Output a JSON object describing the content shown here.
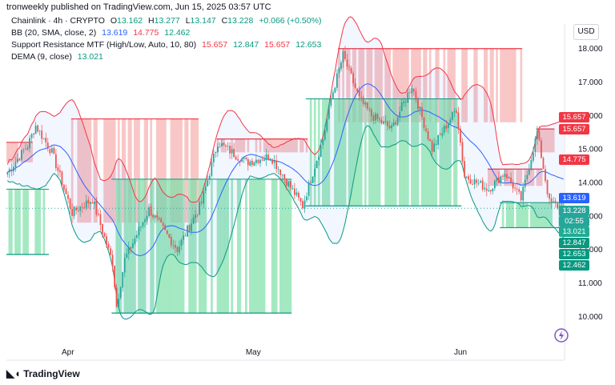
{
  "header": {
    "publisher": "tronweekly published on TradingView.com, Jun 15, 2025 03:57 UTC"
  },
  "legend": {
    "symbol_line": "Chainlink · 4h · CRYPTO",
    "open_label": "O",
    "open": "13.162",
    "high_label": "H",
    "high": "13.277",
    "low_label": "L",
    "low": "13.147",
    "close_label": "C",
    "close": "13.228",
    "change": "+0.066 (+0.50%)",
    "bb_label": "BB (20, SMA, close, 2)",
    "bb_basis": "13.619",
    "bb_upper": "14.775",
    "bb_lower": "12.462",
    "sr_label": "Support Resistance MTF (High/Low, Auto, 10, 80)",
    "sr_v1": "15.657",
    "sr_v2": "12.847",
    "sr_v3": "15.657",
    "sr_v4": "12.653",
    "dema_label": "DEMA (9, close)",
    "dema": "13.021"
  },
  "currency_button": "USD",
  "price_tags": {
    "r1": "15.657",
    "r2": "15.657",
    "bb_upper": "14.775",
    "bb_basis": "13.619",
    "close": "13.228",
    "countdown": "02:55",
    "dema": "13.021",
    "s1": "12.847",
    "s2": "12.653",
    "bb_lower": "12.462"
  },
  "footer": {
    "brand": "TradingView"
  },
  "colors": {
    "up": "#26a69a",
    "down": "#ef5350",
    "basis": "#2962ff",
    "bb_upper": "#f23645",
    "bb_lower": "#089981",
    "res_fill": "#f7b4b4",
    "sup_fill": "#7fe0a8"
  },
  "chart_data": {
    "type": "candlestick",
    "symbol": "Chainlink",
    "interval": "4h",
    "ylim": [
      9.6,
      18.4
    ],
    "y_ticks": [
      "18.000",
      "17.000",
      "16.000",
      "15.000",
      "14.000",
      "13.000",
      "12.000",
      "11.000",
      "10.000"
    ],
    "x_ticks": [
      "Apr",
      "May",
      "Jun"
    ],
    "x_tick_index": [
      30,
      121,
      224
    ],
    "n_candles": 276,
    "path_anchors": [
      [
        0,
        14.3
      ],
      [
        10,
        15.1
      ],
      [
        14,
        15.7
      ],
      [
        22,
        14.9
      ],
      [
        32,
        13.1
      ],
      [
        42,
        13.5
      ],
      [
        52,
        11.6
      ],
      [
        54,
        10.3
      ],
      [
        58,
        11.7
      ],
      [
        70,
        13.2
      ],
      [
        84,
        12.0
      ],
      [
        96,
        13.4
      ],
      [
        104,
        15.2
      ],
      [
        118,
        14.6
      ],
      [
        130,
        14.8
      ],
      [
        146,
        13.3
      ],
      [
        156,
        15.3
      ],
      [
        160,
        16.5
      ],
      [
        166,
        17.8
      ],
      [
        174,
        16.5
      ],
      [
        180,
        16.0
      ],
      [
        190,
        15.6
      ],
      [
        200,
        16.9
      ],
      [
        210,
        15.0
      ],
      [
        222,
        16.2
      ],
      [
        226,
        14.2
      ],
      [
        238,
        13.8
      ],
      [
        246,
        14.3
      ],
      [
        254,
        13.5
      ],
      [
        262,
        15.5
      ],
      [
        268,
        13.4
      ],
      [
        275,
        13.228
      ]
    ],
    "resistance_zones": [
      {
        "from": 0,
        "to": 12,
        "top": 15.2,
        "bottom": 14.6
      },
      {
        "from": 32,
        "to": 94,
        "top": 15.9,
        "bottom": 12.8
      },
      {
        "from": 104,
        "to": 148,
        "top": 15.3,
        "bottom": 14.9
      },
      {
        "from": 164,
        "to": 254,
        "top": 18.0,
        "bottom": 15.8
      },
      {
        "from": 238,
        "to": 264,
        "top": 14.4,
        "bottom": 13.9
      },
      {
        "from": 262,
        "to": 270,
        "top": 15.6,
        "bottom": 14.9
      }
    ],
    "support_zones": [
      {
        "from": 0,
        "to": 20,
        "top": 13.8,
        "bottom": 11.85
      },
      {
        "from": 52,
        "to": 140,
        "top": 14.1,
        "bottom": 10.1
      },
      {
        "from": 148,
        "to": 224,
        "top": 16.5,
        "bottom": 13.3
      },
      {
        "from": 244,
        "to": 275,
        "top": 13.4,
        "bottom": 12.65
      }
    ],
    "indicators": {
      "bb_period": 20,
      "bb_mult": 2,
      "dema_period": 9,
      "last_basis": 13.619,
      "last_upper": 14.775,
      "last_lower": 12.462,
      "last_dema": 13.021
    }
  }
}
